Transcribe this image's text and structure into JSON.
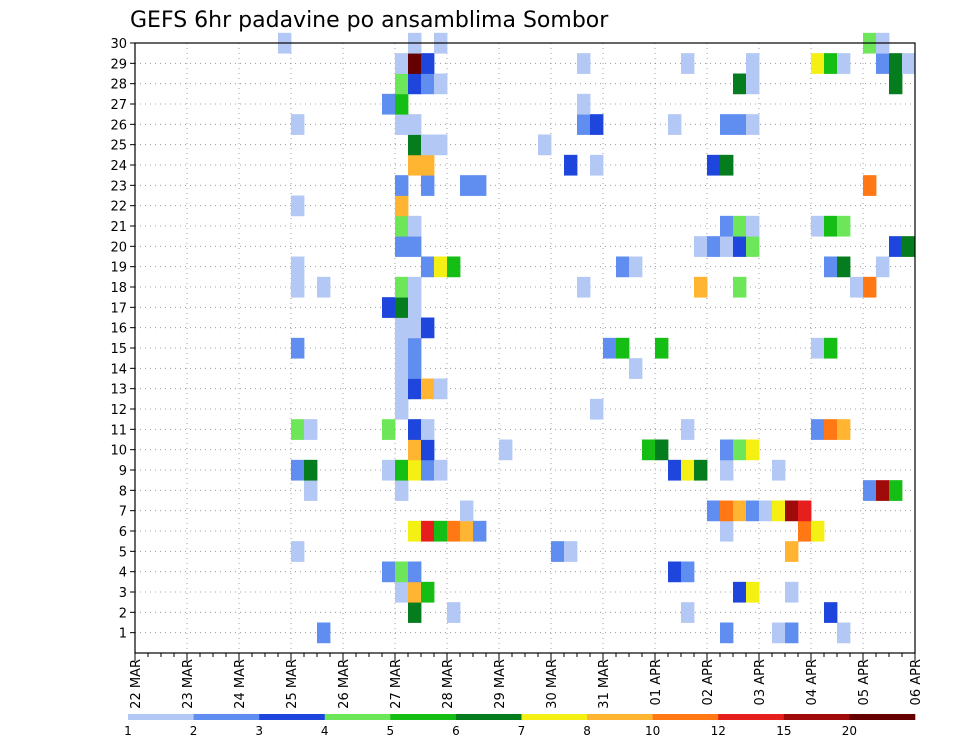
{
  "chart_data": {
    "type": "heatmap",
    "title": "GEFS 6hr padavine po ansamblima Sombor",
    "x_tick_labels": [
      "22 MAR",
      "23 MAR",
      "24 MAR",
      "25 MAR",
      "26 MAR",
      "27 MAR",
      "28 MAR",
      "29 MAR",
      "30 MAR",
      "31 MAR",
      "01 APR",
      "02 APR",
      "03 APR",
      "04 APR",
      "05 APR",
      "06 APR"
    ],
    "y_tick_labels": [
      "1",
      "2",
      "3",
      "4",
      "5",
      "6",
      "7",
      "8",
      "9",
      "10",
      "11",
      "12",
      "13",
      "14",
      "15",
      "16",
      "17",
      "18",
      "19",
      "20",
      "21",
      "22",
      "23",
      "24",
      "25",
      "26",
      "27",
      "28",
      "29",
      "30"
    ],
    "ylim": [
      0,
      30
    ],
    "time_steps": 60,
    "steps_per_day": 4,
    "grid": true,
    "legend_position": "bottom",
    "levels": [
      "1",
      "2",
      "3",
      "4",
      "5",
      "6",
      "7",
      "8",
      "10",
      "12",
      "15",
      "20"
    ],
    "colors": [
      "#b4c8f5",
      "#5f8ef0",
      "#1e46dc",
      "#6ee65a",
      "#14be14",
      "#057d1e",
      "#f5f014",
      "#ffb432",
      "#ff7814",
      "#e61e1e",
      "#a00a0a",
      "#640000"
    ],
    "cells": [
      [
        1,
        15,
        1
      ],
      [
        1,
        46,
        1
      ],
      [
        1,
        50,
        0
      ],
      [
        1,
        51,
        1
      ],
      [
        1,
        55,
        0
      ],
      [
        2,
        22,
        5
      ],
      [
        2,
        25,
        0
      ],
      [
        2,
        43,
        0
      ],
      [
        2,
        54,
        2
      ],
      [
        3,
        21,
        0
      ],
      [
        3,
        22,
        7
      ],
      [
        3,
        23,
        4
      ],
      [
        3,
        47,
        2
      ],
      [
        3,
        48,
        6
      ],
      [
        3,
        51,
        0
      ],
      [
        4,
        20,
        1
      ],
      [
        4,
        21,
        3
      ],
      [
        4,
        22,
        1
      ],
      [
        4,
        42,
        2
      ],
      [
        4,
        43,
        1
      ],
      [
        5,
        13,
        0
      ],
      [
        5,
        33,
        1
      ],
      [
        5,
        34,
        0
      ],
      [
        5,
        51,
        7
      ],
      [
        6,
        22,
        6
      ],
      [
        6,
        23,
        9
      ],
      [
        6,
        24,
        4
      ],
      [
        6,
        25,
        8
      ],
      [
        6,
        26,
        7
      ],
      [
        6,
        27,
        1
      ],
      [
        6,
        46,
        0
      ],
      [
        6,
        52,
        8
      ],
      [
        6,
        53,
        6
      ],
      [
        7,
        26,
        0
      ],
      [
        7,
        45,
        1
      ],
      [
        7,
        46,
        8
      ],
      [
        7,
        47,
        7
      ],
      [
        7,
        48,
        1
      ],
      [
        7,
        49,
        0
      ],
      [
        7,
        50,
        6
      ],
      [
        7,
        51,
        10
      ],
      [
        7,
        52,
        9
      ],
      [
        8,
        14,
        0
      ],
      [
        8,
        21,
        0
      ],
      [
        8,
        57,
        1
      ],
      [
        8,
        58,
        10
      ],
      [
        8,
        59,
        4
      ],
      [
        9,
        13,
        1
      ],
      [
        9,
        14,
        5
      ],
      [
        9,
        20,
        0
      ],
      [
        9,
        21,
        4
      ],
      [
        9,
        22,
        6
      ],
      [
        9,
        23,
        1
      ],
      [
        9,
        24,
        0
      ],
      [
        9,
        42,
        2
      ],
      [
        9,
        43,
        6
      ],
      [
        9,
        44,
        5
      ],
      [
        9,
        46,
        0
      ],
      [
        9,
        50,
        0
      ],
      [
        10,
        22,
        7
      ],
      [
        10,
        23,
        2
      ],
      [
        10,
        29,
        0
      ],
      [
        10,
        40,
        4
      ],
      [
        10,
        41,
        5
      ],
      [
        10,
        46,
        1
      ],
      [
        10,
        47,
        3
      ],
      [
        10,
        48,
        6
      ],
      [
        11,
        13,
        3
      ],
      [
        11,
        14,
        0
      ],
      [
        11,
        20,
        3
      ],
      [
        11,
        22,
        2
      ],
      [
        11,
        23,
        0
      ],
      [
        11,
        43,
        0
      ],
      [
        11,
        53,
        1
      ],
      [
        11,
        54,
        8
      ],
      [
        11,
        55,
        7
      ],
      [
        12,
        21,
        0
      ],
      [
        12,
        36,
        0
      ],
      [
        13,
        21,
        0
      ],
      [
        13,
        22,
        2
      ],
      [
        13,
        23,
        7
      ],
      [
        13,
        24,
        0
      ],
      [
        14,
        21,
        0
      ],
      [
        14,
        22,
        1
      ],
      [
        14,
        39,
        0
      ],
      [
        15,
        13,
        1
      ],
      [
        15,
        21,
        0
      ],
      [
        15,
        22,
        1
      ],
      [
        15,
        37,
        1
      ],
      [
        15,
        38,
        4
      ],
      [
        15,
        41,
        4
      ],
      [
        15,
        53,
        0
      ],
      [
        15,
        54,
        4
      ],
      [
        16,
        21,
        0
      ],
      [
        16,
        22,
        0
      ],
      [
        16,
        23,
        2
      ],
      [
        17,
        20,
        2
      ],
      [
        17,
        21,
        5
      ],
      [
        17,
        22,
        0
      ],
      [
        18,
        13,
        0
      ],
      [
        18,
        15,
        0
      ],
      [
        18,
        21,
        3
      ],
      [
        18,
        22,
        0
      ],
      [
        18,
        35,
        0
      ],
      [
        18,
        44,
        7
      ],
      [
        18,
        47,
        3
      ],
      [
        18,
        56,
        0
      ],
      [
        18,
        57,
        8
      ],
      [
        19,
        13,
        0
      ],
      [
        19,
        23,
        1
      ],
      [
        19,
        24,
        6
      ],
      [
        19,
        25,
        4
      ],
      [
        19,
        38,
        1
      ],
      [
        19,
        39,
        0
      ],
      [
        19,
        54,
        1
      ],
      [
        19,
        55,
        5
      ],
      [
        19,
        58,
        0
      ],
      [
        20,
        21,
        1
      ],
      [
        20,
        22,
        1
      ],
      [
        20,
        44,
        0
      ],
      [
        20,
        45,
        1
      ],
      [
        20,
        46,
        0
      ],
      [
        20,
        47,
        2
      ],
      [
        20,
        48,
        3
      ],
      [
        20,
        59,
        2
      ],
      [
        20,
        60,
        5
      ],
      [
        21,
        21,
        3
      ],
      [
        21,
        22,
        0
      ],
      [
        21,
        46,
        1
      ],
      [
        21,
        47,
        3
      ],
      [
        21,
        48,
        0
      ],
      [
        21,
        53,
        0
      ],
      [
        21,
        54,
        4
      ],
      [
        21,
        55,
        3
      ],
      [
        22,
        13,
        0
      ],
      [
        22,
        21,
        7
      ],
      [
        23,
        21,
        1
      ],
      [
        23,
        23,
        1
      ],
      [
        23,
        26,
        1
      ],
      [
        23,
        27,
        1
      ],
      [
        23,
        57,
        8
      ],
      [
        24,
        22,
        7
      ],
      [
        24,
        23,
        7
      ],
      [
        24,
        34,
        2
      ],
      [
        24,
        36,
        0
      ],
      [
        24,
        45,
        2
      ],
      [
        24,
        46,
        5
      ],
      [
        25,
        22,
        5
      ],
      [
        25,
        23,
        0
      ],
      [
        25,
        24,
        0
      ],
      [
        25,
        32,
        0
      ],
      [
        26,
        13,
        0
      ],
      [
        26,
        21,
        0
      ],
      [
        26,
        22,
        0
      ],
      [
        26,
        35,
        1
      ],
      [
        26,
        36,
        2
      ],
      [
        26,
        42,
        0
      ],
      [
        26,
        46,
        1
      ],
      [
        26,
        47,
        1
      ],
      [
        26,
        48,
        0
      ],
      [
        27,
        20,
        1
      ],
      [
        27,
        21,
        4
      ],
      [
        27,
        35,
        0
      ],
      [
        28,
        21,
        3
      ],
      [
        28,
        22,
        2
      ],
      [
        28,
        23,
        1
      ],
      [
        28,
        24,
        0
      ],
      [
        28,
        47,
        5
      ],
      [
        28,
        48,
        0
      ],
      [
        28,
        59,
        5
      ],
      [
        29,
        21,
        0
      ],
      [
        29,
        22,
        11
      ],
      [
        29,
        23,
        2
      ],
      [
        29,
        35,
        0
      ],
      [
        29,
        43,
        0
      ],
      [
        29,
        48,
        0
      ],
      [
        29,
        53,
        6
      ],
      [
        29,
        54,
        4
      ],
      [
        29,
        55,
        0
      ],
      [
        29,
        58,
        1
      ],
      [
        29,
        59,
        5
      ],
      [
        29,
        60,
        0
      ],
      [
        30,
        12,
        0
      ],
      [
        30,
        22,
        0
      ],
      [
        30,
        24,
        0
      ],
      [
        30,
        57,
        3
      ],
      [
        30,
        58,
        0
      ]
    ]
  }
}
